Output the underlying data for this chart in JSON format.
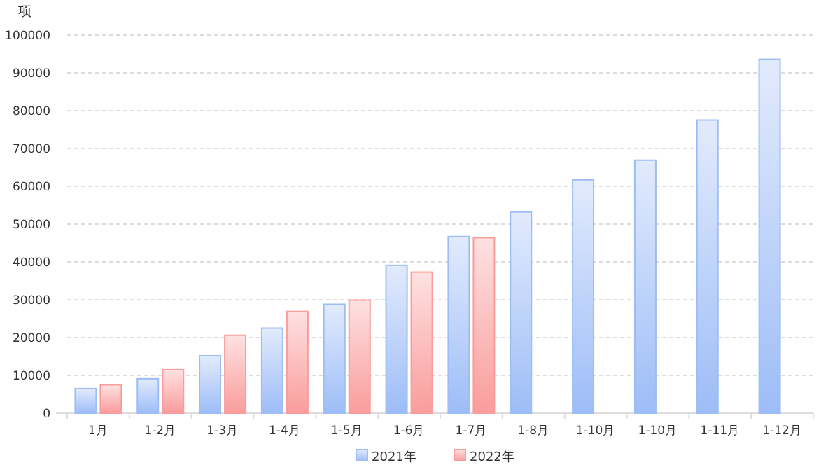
{
  "chart_data": {
    "type": "bar",
    "ylabel": "项",
    "categories": [
      "1月",
      "1-2月",
      "1-3月",
      "1-4月",
      "1-5月",
      "1-6月",
      "1-7月",
      "1-8月",
      "1-10月",
      "1-10月",
      "1-11月",
      "1-12月"
    ],
    "series": [
      {
        "name": "2021年",
        "color": "#9dbdf7",
        "values": [
          6500,
          9100,
          15200,
          22500,
          28800,
          39100,
          46700,
          53200,
          61700,
          66900,
          77500,
          93600
        ]
      },
      {
        "name": "2022年",
        "color": "#fa9c9c",
        "values": [
          7500,
          11500,
          20600,
          26900,
          29900,
          37300,
          46400,
          null,
          null,
          null,
          null,
          null
        ]
      }
    ],
    "ylim": [
      0,
      100000
    ],
    "yticks": [
      0,
      10000,
      20000,
      30000,
      40000,
      50000,
      60000,
      70000,
      80000,
      90000,
      100000
    ],
    "grid": "y",
    "legend": "bottom"
  }
}
